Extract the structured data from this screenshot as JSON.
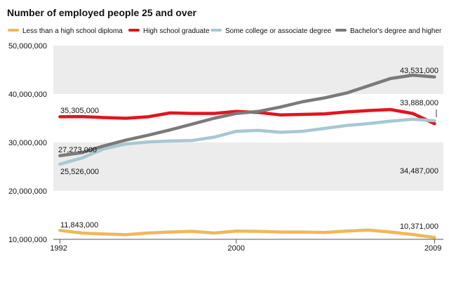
{
  "chart_data": {
    "type": "line",
    "title": "Number of employed people 25 and over",
    "xlabel": "",
    "ylabel": "",
    "x": [
      1992,
      1993,
      1994,
      1995,
      1996,
      1997,
      1998,
      1999,
      2000,
      2001,
      2002,
      2003,
      2004,
      2005,
      2006,
      2007,
      2008,
      2009
    ],
    "x_tick_labels": [
      "1992",
      "2000",
      "2009"
    ],
    "x_ticks": [
      1992,
      2000,
      2009
    ],
    "xlim": [
      1991.7,
      2009.4
    ],
    "ylim": [
      10000000,
      50000000
    ],
    "y_ticks": [
      10000000,
      20000000,
      30000000,
      40000000,
      50000000
    ],
    "y_tick_labels": [
      "10,000,000",
      "20,000,000",
      "30,000,000",
      "40,000,000",
      "50,000,000"
    ],
    "grid": false,
    "background_bands": [
      [
        20000000,
        30000000
      ],
      [
        40000000,
        50000000
      ]
    ],
    "legend_position": "top",
    "series": [
      {
        "name": "Less than a high school diploma",
        "color": "#f0b85a",
        "values": [
          11843000,
          11300000,
          11100000,
          10950000,
          11300000,
          11500000,
          11650000,
          11300000,
          11700000,
          11650000,
          11500000,
          11500000,
          11400000,
          11700000,
          11900000,
          11500000,
          11000000,
          10371000
        ]
      },
      {
        "name": "High school graduate",
        "color": "#e2141d",
        "values": [
          35305000,
          35350000,
          35150000,
          35000000,
          35300000,
          36100000,
          36000000,
          36000000,
          36400000,
          36200000,
          35700000,
          35800000,
          35900000,
          36300000,
          36600000,
          36800000,
          36000000,
          33888000
        ]
      },
      {
        "name": "Some college or associate degree",
        "color": "#a7c8d3",
        "values": [
          25526000,
          26800000,
          28700000,
          29700000,
          30100000,
          30300000,
          30400000,
          31100000,
          32300000,
          32500000,
          32100000,
          32300000,
          32900000,
          33500000,
          33900000,
          34400000,
          34800000,
          34487000
        ]
      },
      {
        "name": "Bachelor's degree and higher",
        "color": "#7a7a7a",
        "values": [
          27273000,
          27900000,
          29300000,
          30500000,
          31500000,
          32600000,
          33800000,
          35000000,
          36000000,
          36400000,
          37300000,
          38400000,
          39200000,
          40200000,
          41700000,
          43200000,
          43900000,
          43531000
        ]
      }
    ],
    "annotations": [
      {
        "text": "35,305,000",
        "series": 1,
        "point": 0
      },
      {
        "text": "27,273,000",
        "series": 3,
        "point": 0
      },
      {
        "text": "25,526,000",
        "series": 2,
        "point": 0
      },
      {
        "text": "11,843,000",
        "series": 0,
        "point": 0
      },
      {
        "text": "43,531,000",
        "series": 3,
        "point": 17
      },
      {
        "text": "33,888,000",
        "series": 1,
        "point": 17
      },
      {
        "text": "34,487,000",
        "series": 2,
        "point": 17
      },
      {
        "text": "10,371,000",
        "series": 0,
        "point": 17
      }
    ]
  }
}
